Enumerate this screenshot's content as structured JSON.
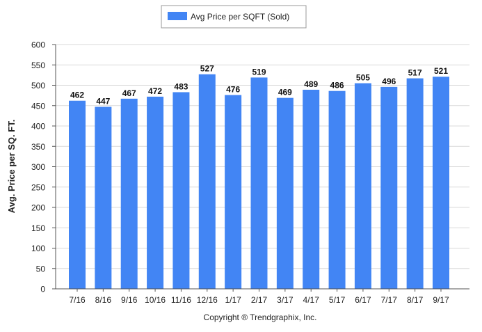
{
  "chart_data": {
    "type": "bar",
    "title": "",
    "xlabel": "",
    "ylabel": "Avg. Price per SQ. FT.",
    "ylim": [
      0,
      600
    ],
    "yticks": [
      0,
      50,
      100,
      150,
      200,
      250,
      300,
      350,
      400,
      450,
      500,
      550,
      600
    ],
    "grid": "horizontal",
    "legend_position": "top-center",
    "categories": [
      "7/16",
      "8/16",
      "9/16",
      "10/16",
      "11/16",
      "12/16",
      "1/17",
      "2/17",
      "3/17",
      "4/17",
      "5/17",
      "6/17",
      "7/17",
      "8/17",
      "9/17"
    ],
    "series": [
      {
        "name": "Avg Price per SQFT (Sold)",
        "color": "#4285f4",
        "values": [
          462,
          447,
          467,
          472,
          483,
          527,
          476,
          519,
          469,
          489,
          486,
          505,
          496,
          517,
          521
        ]
      }
    ],
    "data_labels": true
  },
  "footer": {
    "copyright": "Copyright ® Trendgraphix, Inc."
  }
}
